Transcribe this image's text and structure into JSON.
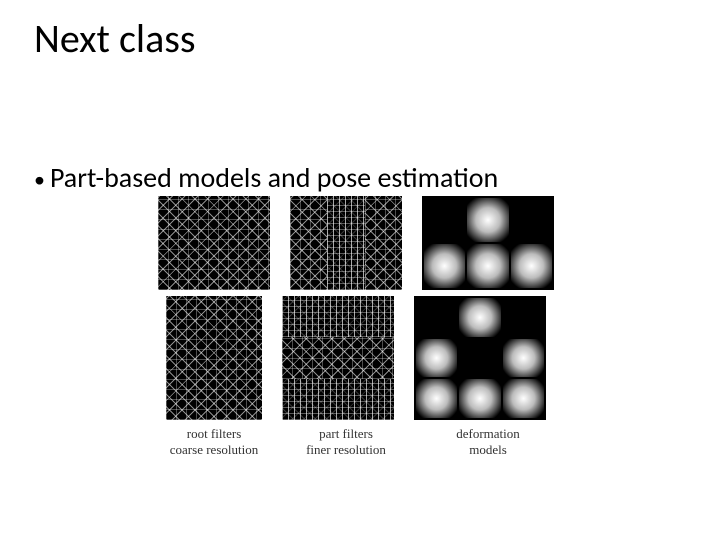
{
  "title": "Next class",
  "bullet": "Part-based models and pose estimation",
  "figure": {
    "col_labels": [
      {
        "line1": "root filters",
        "line2": "coarse resolution"
      },
      {
        "line1": "part filters",
        "line2": "finer resolution"
      },
      {
        "line1": "deformation",
        "line2": "models"
      }
    ],
    "def_grid_top": [
      "dark",
      "blob",
      "dark",
      "blob",
      "blob",
      "blob"
    ],
    "def_grid_bottom": [
      "dark",
      "blob",
      "dark",
      "blob",
      "dark",
      "blob",
      "blob",
      "blob",
      "blob"
    ],
    "colors": {
      "background": "#ffffff",
      "text": "#000000",
      "panel_bg": "#000000",
      "label_font": "Times New Roman"
    }
  }
}
